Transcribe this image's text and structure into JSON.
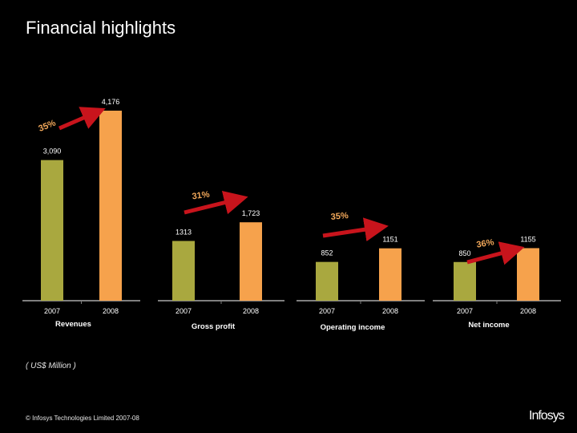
{
  "header": {
    "title": "Financial highlights"
  },
  "colors": {
    "bar_2007": "#a9a83f",
    "bar_2008": "#f6a24c",
    "arrow": "#c8141c",
    "axis": "#7f7f7f",
    "text": "#ffffff",
    "growth_text": "#f2a85a"
  },
  "chart_data": [
    {
      "type": "bar",
      "title": "Revenues",
      "categories": [
        "2007",
        "2008"
      ],
      "values": [
        3090,
        4176
      ],
      "value_labels": [
        "3,090",
        "4,176"
      ],
      "growth": "35%"
    },
    {
      "type": "bar",
      "title": "Gross profit",
      "categories": [
        "2007",
        "2008"
      ],
      "values": [
        1313,
        1723
      ],
      "value_labels": [
        "1313",
        "1,723"
      ],
      "growth": "31%"
    },
    {
      "type": "bar",
      "title": "Operating income",
      "categories": [
        "2007",
        "2008"
      ],
      "values": [
        852,
        1151
      ],
      "value_labels": [
        "852",
        "1151"
      ],
      "growth": "35%"
    },
    {
      "type": "bar",
      "title": "Net income",
      "categories": [
        "2007",
        "2008"
      ],
      "values": [
        850,
        1155
      ],
      "value_labels": [
        "850",
        "1155"
      ],
      "growth": "36%"
    }
  ],
  "units": "( US$ Million )",
  "footer": {
    "copyright": "© Infosys Technologies Limited 2007-08"
  },
  "logo": {
    "text": "Infosys"
  }
}
